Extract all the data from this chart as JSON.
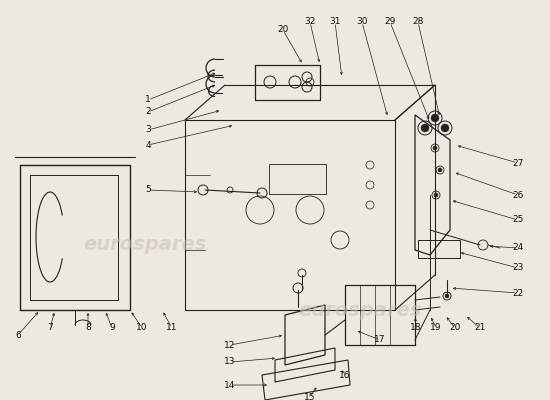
{
  "bg": "#ede8e0",
  "lc": "#222222",
  "wm_color": "#c8bfb0",
  "wm_alpha": 0.55,
  "label_fs": 6.5,
  "label_color": "#111111"
}
